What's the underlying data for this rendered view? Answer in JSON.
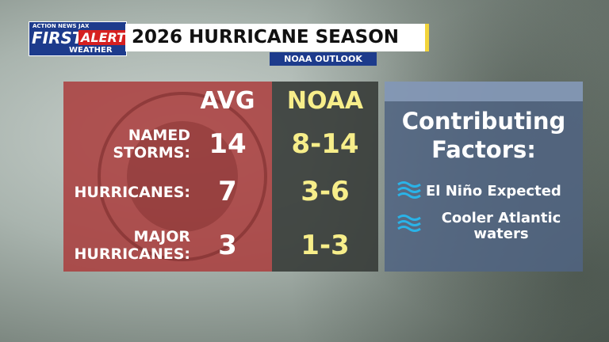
{
  "logo": {
    "station": "ACTION NEWS JAX",
    "first": "FIRST",
    "alert": "ALERT",
    "weather": "WEATHER"
  },
  "header": {
    "title": "2026 HURRICANE SEASON",
    "subtitle": "NOAA OUTLOOK"
  },
  "table": {
    "columns": [
      "AVG",
      "NOAA"
    ],
    "rows": [
      [
        "NAMED STORMS:",
        14,
        "8-14"
      ],
      [
        "HURRICANES:",
        7,
        "3-6"
      ],
      [
        "MAJOR HURRICANES:",
        3,
        "1-3"
      ]
    ]
  },
  "factors": {
    "title": "Contributing Factors:",
    "items": [
      "El Niño Expected",
      "Cooler Atlantic waters"
    ]
  }
}
